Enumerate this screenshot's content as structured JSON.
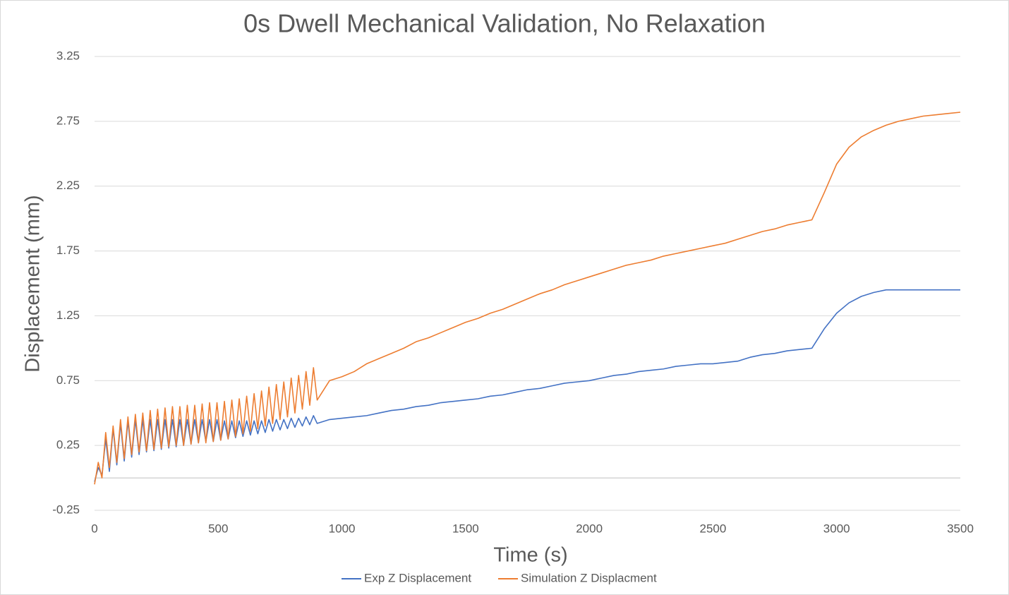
{
  "chart_data": {
    "type": "line",
    "title": "0s Dwell Mechanical Validation, No Relaxation",
    "x_label": "Time (s)",
    "y_label": "Displacement (mm)",
    "x": [
      0,
      15,
      30,
      45,
      60,
      75,
      90,
      105,
      120,
      135,
      150,
      165,
      180,
      195,
      210,
      225,
      240,
      255,
      270,
      285,
      300,
      315,
      330,
      345,
      360,
      375,
      390,
      405,
      420,
      435,
      450,
      465,
      480,
      495,
      510,
      525,
      540,
      555,
      570,
      585,
      600,
      615,
      630,
      645,
      660,
      675,
      690,
      705,
      720,
      735,
      750,
      765,
      780,
      795,
      810,
      825,
      840,
      855,
      870,
      885,
      900,
      950,
      1000,
      1050,
      1100,
      1150,
      1200,
      1250,
      1300,
      1350,
      1400,
      1450,
      1500,
      1550,
      1600,
      1650,
      1700,
      1750,
      1800,
      1850,
      1900,
      1950,
      2000,
      2050,
      2100,
      2150,
      2200,
      2250,
      2300,
      2350,
      2400,
      2450,
      2500,
      2550,
      2600,
      2650,
      2700,
      2750,
      2800,
      2850,
      2900,
      2950,
      3000,
      3050,
      3100,
      3150,
      3200,
      3250,
      3300,
      3350,
      3400,
      3450,
      3500
    ],
    "series": [
      {
        "name": "Exp Z Displacement",
        "color": "#4472c4",
        "values": [
          -0.03,
          0.08,
          0.02,
          0.3,
          0.05,
          0.38,
          0.1,
          0.42,
          0.13,
          0.44,
          0.16,
          0.45,
          0.18,
          0.45,
          0.2,
          0.45,
          0.21,
          0.45,
          0.22,
          0.45,
          0.23,
          0.45,
          0.24,
          0.45,
          0.25,
          0.45,
          0.26,
          0.45,
          0.27,
          0.45,
          0.28,
          0.45,
          0.28,
          0.45,
          0.29,
          0.44,
          0.3,
          0.44,
          0.31,
          0.44,
          0.32,
          0.44,
          0.33,
          0.44,
          0.34,
          0.44,
          0.35,
          0.45,
          0.36,
          0.45,
          0.37,
          0.45,
          0.38,
          0.46,
          0.39,
          0.46,
          0.4,
          0.47,
          0.41,
          0.48,
          0.42,
          0.45,
          0.46,
          0.47,
          0.48,
          0.5,
          0.52,
          0.53,
          0.55,
          0.56,
          0.58,
          0.59,
          0.6,
          0.61,
          0.63,
          0.64,
          0.66,
          0.68,
          0.69,
          0.71,
          0.73,
          0.74,
          0.75,
          0.77,
          0.79,
          0.8,
          0.82,
          0.83,
          0.84,
          0.86,
          0.87,
          0.88,
          0.88,
          0.89,
          0.9,
          0.93,
          0.95,
          0.96,
          0.98,
          0.99,
          1.0,
          1.15,
          1.27,
          1.35,
          1.4,
          1.43,
          1.45,
          1.45,
          1.45,
          1.45,
          1.45,
          1.45,
          1.45
        ]
      },
      {
        "name": "Simulation Z Displacment",
        "color": "#ed7d31",
        "values": [
          -0.05,
          0.12,
          0.0,
          0.35,
          0.08,
          0.4,
          0.12,
          0.45,
          0.15,
          0.47,
          0.18,
          0.49,
          0.2,
          0.5,
          0.21,
          0.52,
          0.22,
          0.53,
          0.23,
          0.54,
          0.24,
          0.55,
          0.25,
          0.55,
          0.25,
          0.56,
          0.26,
          0.56,
          0.27,
          0.57,
          0.27,
          0.58,
          0.28,
          0.58,
          0.29,
          0.59,
          0.3,
          0.6,
          0.32,
          0.61,
          0.34,
          0.63,
          0.36,
          0.65,
          0.38,
          0.67,
          0.4,
          0.7,
          0.42,
          0.72,
          0.45,
          0.74,
          0.47,
          0.77,
          0.5,
          0.79,
          0.53,
          0.82,
          0.56,
          0.85,
          0.6,
          0.75,
          0.78,
          0.82,
          0.88,
          0.92,
          0.96,
          1.0,
          1.05,
          1.08,
          1.12,
          1.16,
          1.2,
          1.23,
          1.27,
          1.3,
          1.34,
          1.38,
          1.42,
          1.45,
          1.49,
          1.52,
          1.55,
          1.58,
          1.61,
          1.64,
          1.66,
          1.68,
          1.71,
          1.73,
          1.75,
          1.77,
          1.79,
          1.81,
          1.84,
          1.87,
          1.9,
          1.92,
          1.95,
          1.97,
          1.99,
          2.2,
          2.42,
          2.55,
          2.63,
          2.68,
          2.72,
          2.75,
          2.77,
          2.79,
          2.8,
          2.81,
          2.82
        ]
      }
    ],
    "xlim": [
      0,
      3500
    ],
    "xticks": [
      0,
      500,
      1000,
      1500,
      2000,
      2500,
      3000,
      3500
    ],
    "ylim": [
      -0.25,
      3.25
    ],
    "yticks": [
      -0.25,
      0.25,
      0.75,
      1.25,
      1.75,
      2.25,
      2.75,
      3.25
    ],
    "grid": true,
    "legend": "bottom"
  }
}
